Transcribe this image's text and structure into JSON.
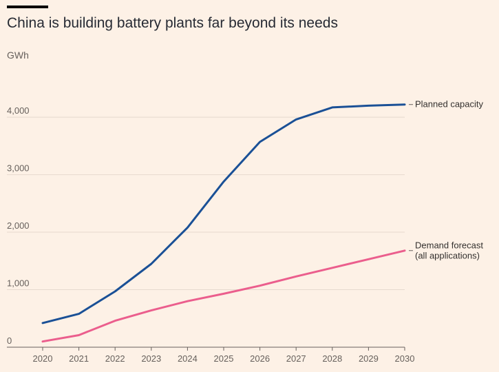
{
  "chart_data": {
    "type": "line",
    "title": "China is building battery plants far beyond its needs",
    "ylabel": "GWh",
    "xlabel": "",
    "x": [
      "2020",
      "2021",
      "2022",
      "2023",
      "2024",
      "2025",
      "2026",
      "2027",
      "2028",
      "2029",
      "2030"
    ],
    "ylim": [
      0,
      4600
    ],
    "yticks": [
      0,
      1000,
      2000,
      3000,
      4000
    ],
    "ytick_labels": [
      "0",
      "1,000",
      "2,000",
      "3,000",
      "4,000"
    ],
    "grid": true,
    "legend": "direct labels at line ends (right)",
    "series": [
      {
        "name": "Planned capacity",
        "color": "#1a5096",
        "values": [
          420,
          580,
          970,
          1450,
          2080,
          2880,
          3570,
          3960,
          4170,
          4200,
          4220
        ]
      },
      {
        "name": "Demand forecast (all applications)",
        "label_lines": [
          "Demand forecast",
          "(all applications)"
        ],
        "color": "#eb5e8d",
        "values": [
          100,
          210,
          460,
          640,
          800,
          930,
          1070,
          1230,
          1380,
          1530,
          1680
        ]
      }
    ]
  }
}
